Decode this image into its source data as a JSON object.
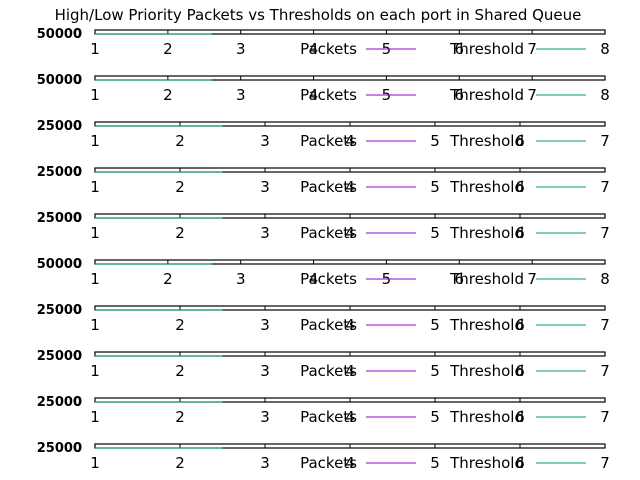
{
  "chart_data": {
    "type": "line",
    "title": "High/Low Priority Packets vs Thresholds on each port in Shared Queue",
    "colors": {
      "packets": "#9400d3",
      "threshold": "#009e73",
      "frame": "#000000"
    },
    "panels": [
      {
        "xlim": [
          1,
          8
        ],
        "xticks": [
          "1",
          "2",
          "3",
          "4",
          "5",
          "6",
          "7",
          "8"
        ],
        "ylim": [
          0,
          50000
        ],
        "yticks": [
          "0",
          "50000"
        ],
        "series": [
          {
            "name": "Packets",
            "x": [
              1.0,
              1.1,
              1.2,
              1.35,
              1.5,
              1.7,
              1.9,
              2.1,
              2.3,
              2.6
            ],
            "y": [
              5000,
              4200,
              3600,
              3000,
              2500,
              2000,
              1600,
              1200,
              800,
              400
            ]
          },
          {
            "name": "Threshold",
            "x": [
              1.0,
              1.1,
              1.2,
              1.35,
              1.5,
              1.7,
              1.9,
              2.1,
              2.3,
              2.6
            ],
            "y": [
              5200,
              4500,
              3800,
              3200,
              2700,
              2100,
              1700,
              1300,
              900,
              500
            ]
          }
        ]
      },
      {
        "xlim": [
          1,
          8
        ],
        "xticks": [
          "1",
          "2",
          "3",
          "4",
          "5",
          "6",
          "7",
          "8"
        ],
        "ylim": [
          0,
          50000
        ],
        "yticks": [
          "0",
          "50000"
        ],
        "series": [
          {
            "name": "Packets",
            "x": [
              1.0,
              1.1,
              1.2,
              1.35,
              1.5,
              1.7,
              1.9,
              2.1,
              2.3,
              2.6
            ],
            "y": [
              5000,
              4200,
              3600,
              3000,
              2500,
              2000,
              1600,
              1200,
              800,
              400
            ]
          },
          {
            "name": "Threshold",
            "x": [
              1.0,
              1.1,
              1.2,
              1.35,
              1.5,
              1.7,
              1.9,
              2.1,
              2.3,
              2.6
            ],
            "y": [
              5200,
              4500,
              3800,
              3200,
              2700,
              2100,
              1700,
              1300,
              900,
              500
            ]
          }
        ]
      },
      {
        "xlim": [
          1,
          7
        ],
        "xticks": [
          "1",
          "2",
          "3",
          "4",
          "5",
          "6",
          "7"
        ],
        "ylim": [
          0,
          25000
        ],
        "yticks": [
          "0",
          "25000"
        ],
        "series": [
          {
            "name": "Packets",
            "x": [
              1.0,
              1.2,
              1.4,
              1.6,
              1.8,
              2.0,
              2.2,
              2.5
            ],
            "y": [
              2500,
              3000,
              2200,
              2600,
              1800,
              1500,
              1000,
              500
            ]
          },
          {
            "name": "Threshold",
            "x": [
              1.0,
              1.2,
              1.4,
              1.6,
              1.8,
              2.0,
              2.2,
              2.5
            ],
            "y": [
              2700,
              3200,
              2400,
              2800,
              2000,
              1700,
              1200,
              700
            ]
          }
        ]
      },
      {
        "xlim": [
          1,
          7
        ],
        "xticks": [
          "1",
          "2",
          "3",
          "4",
          "5",
          "6",
          "7"
        ],
        "ylim": [
          0,
          25000
        ],
        "yticks": [
          "0",
          "25000"
        ],
        "series": [
          {
            "name": "Packets",
            "x": [
              1.0,
              1.2,
              1.4,
              1.6,
              1.8,
              2.0,
              2.2,
              2.5
            ],
            "y": [
              2500,
              3000,
              2200,
              2600,
              1800,
              1500,
              1000,
              500
            ]
          },
          {
            "name": "Threshold",
            "x": [
              1.0,
              1.2,
              1.4,
              1.6,
              1.8,
              2.0,
              2.2,
              2.5
            ],
            "y": [
              2700,
              3200,
              2400,
              2800,
              2000,
              1700,
              1200,
              700
            ]
          }
        ]
      },
      {
        "xlim": [
          1,
          7
        ],
        "xticks": [
          "1",
          "2",
          "3",
          "4",
          "5",
          "6",
          "7"
        ],
        "ylim": [
          0,
          25000
        ],
        "yticks": [
          "0",
          "25000"
        ],
        "series": [
          {
            "name": "Packets",
            "x": [
              1.0,
              1.2,
              1.4,
              1.6,
              1.8,
              2.0,
              2.2,
              2.5
            ],
            "y": [
              2500,
              3000,
              2200,
              2600,
              1800,
              1500,
              1000,
              500
            ]
          },
          {
            "name": "Threshold",
            "x": [
              1.0,
              1.2,
              1.4,
              1.6,
              1.8,
              2.0,
              2.2,
              2.5
            ],
            "y": [
              2700,
              3200,
              2400,
              2800,
              2000,
              1700,
              1200,
              700
            ]
          }
        ]
      },
      {
        "xlim": [
          1,
          8
        ],
        "xticks": [
          "1",
          "2",
          "3",
          "4",
          "5",
          "6",
          "7",
          "8"
        ],
        "ylim": [
          0,
          50000
        ],
        "yticks": [
          "0",
          "50000"
        ],
        "series": [
          {
            "name": "Packets",
            "x": [
              1.0,
              1.1,
              1.2,
              1.35,
              1.5,
              1.7,
              1.9,
              2.1,
              2.3,
              2.6
            ],
            "y": [
              5000,
              4200,
              3600,
              3000,
              2500,
              2000,
              1600,
              1200,
              800,
              400
            ]
          },
          {
            "name": "Threshold",
            "x": [
              1.0,
              1.1,
              1.2,
              1.35,
              1.5,
              1.7,
              1.9,
              2.1,
              2.3,
              2.6
            ],
            "y": [
              5200,
              4500,
              3800,
              3200,
              2700,
              2100,
              1700,
              1300,
              900,
              500
            ]
          }
        ]
      },
      {
        "xlim": [
          1,
          7
        ],
        "xticks": [
          "1",
          "2",
          "3",
          "4",
          "5",
          "6",
          "7"
        ],
        "ylim": [
          0,
          25000
        ],
        "yticks": [
          "0",
          "25000"
        ],
        "series": [
          {
            "name": "Packets",
            "x": [
              1.0,
              1.2,
              1.4,
              1.6,
              1.8,
              2.0,
              2.2,
              2.5
            ],
            "y": [
              2000,
              2500,
              1800,
              2200,
              1500,
              1200,
              900,
              400
            ]
          },
          {
            "name": "Threshold",
            "x": [
              1.0,
              1.2,
              1.4,
              1.6,
              1.8,
              2.0,
              2.2,
              2.5
            ],
            "y": [
              2200,
              2700,
              2000,
              2400,
              1700,
              1400,
              1100,
              600
            ]
          }
        ]
      },
      {
        "xlim": [
          1,
          7
        ],
        "xticks": [
          "1",
          "2",
          "3",
          "4",
          "5",
          "6",
          "7"
        ],
        "ylim": [
          0,
          25000
        ],
        "yticks": [
          "0",
          "25000"
        ],
        "series": [
          {
            "name": "Packets",
            "x": [
              1.0,
              1.2,
              1.4,
              1.6,
              1.8,
              2.0,
              2.2,
              2.5
            ],
            "y": [
              2000,
              2500,
              1800,
              2200,
              1500,
              1200,
              900,
              400
            ]
          },
          {
            "name": "Threshold",
            "x": [
              1.0,
              1.2,
              1.4,
              1.6,
              1.8,
              2.0,
              2.2,
              2.5
            ],
            "y": [
              2200,
              2700,
              2000,
              2400,
              1700,
              1400,
              1100,
              600
            ]
          }
        ]
      },
      {
        "xlim": [
          1,
          7
        ],
        "xticks": [
          "1",
          "2",
          "3",
          "4",
          "5",
          "6",
          "7"
        ],
        "ylim": [
          0,
          25000
        ],
        "yticks": [
          "0",
          "25000"
        ],
        "series": [
          {
            "name": "Packets",
            "x": [
              1.0,
              1.2,
              1.4,
              1.6,
              1.8,
              2.0,
              2.2,
              2.5
            ],
            "y": [
              2500,
              3000,
              2200,
              2600,
              1800,
              1500,
              1000,
              500
            ]
          },
          {
            "name": "Threshold",
            "x": [
              1.0,
              1.2,
              1.4,
              1.6,
              1.8,
              2.0,
              2.2,
              2.5
            ],
            "y": [
              2700,
              3200,
              2400,
              2800,
              2000,
              1700,
              1200,
              700
            ]
          }
        ]
      },
      {
        "xlim": [
          1,
          7
        ],
        "xticks": [
          "1",
          "2",
          "3",
          "4",
          "5",
          "6",
          "7"
        ],
        "ylim": [
          0,
          25000
        ],
        "yticks": [
          "0",
          "25000"
        ],
        "series": [
          {
            "name": "Packets",
            "x": [
              1.0,
              1.2,
              1.4,
              1.6,
              1.8,
              2.0,
              2.2,
              2.5
            ],
            "y": [
              2500,
              3000,
              2200,
              2600,
              1800,
              1500,
              1000,
              500
            ]
          },
          {
            "name": "Threshold",
            "x": [
              1.0,
              1.2,
              1.4,
              1.6,
              1.8,
              2.0,
              2.2,
              2.5
            ],
            "y": [
              2700,
              3200,
              2400,
              2800,
              2000,
              1700,
              1200,
              700
            ]
          }
        ]
      }
    ]
  }
}
